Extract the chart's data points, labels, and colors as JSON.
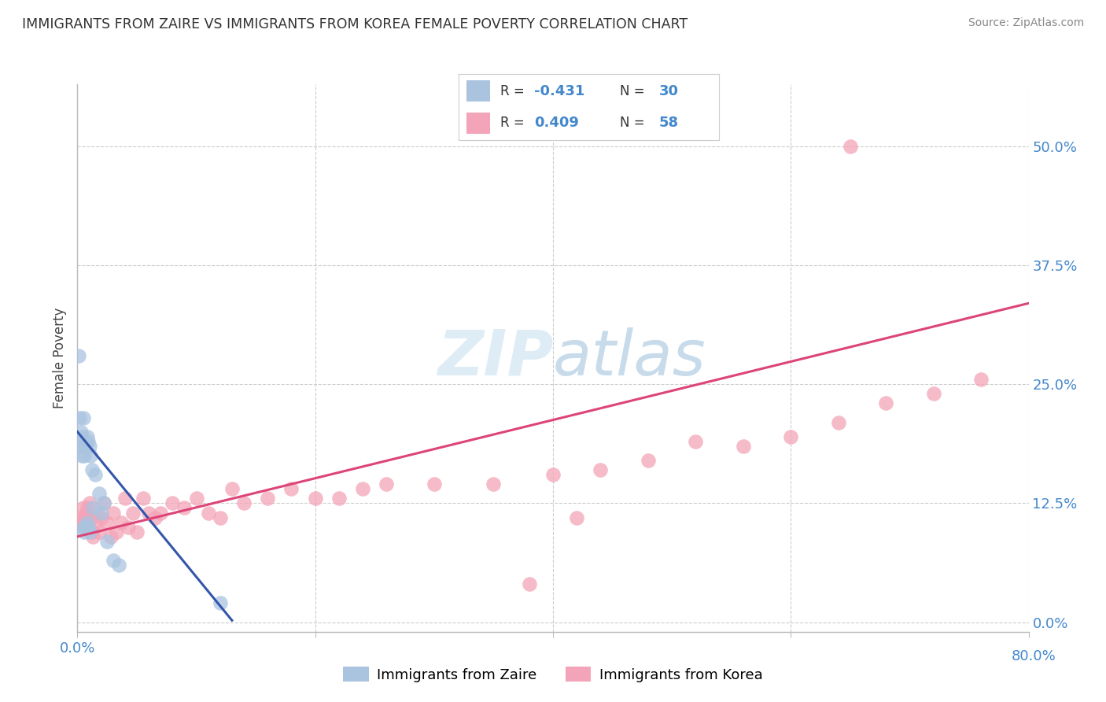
{
  "title": "IMMIGRANTS FROM ZAIRE VS IMMIGRANTS FROM KOREA FEMALE POVERTY CORRELATION CHART",
  "source": "Source: ZipAtlas.com",
  "ylabel": "Female Poverty",
  "y_tick_labels": [
    "0.0%",
    "12.5%",
    "25.0%",
    "37.5%",
    "50.0%"
  ],
  "y_tick_values": [
    0.0,
    0.125,
    0.25,
    0.375,
    0.5
  ],
  "x_range": [
    0.0,
    0.8
  ],
  "y_range": [
    -0.01,
    0.565
  ],
  "zaire_color": "#aac4e0",
  "korea_color": "#f4a4b8",
  "zaire_line_color": "#3355aa",
  "korea_line_color": "#dd4477",
  "background_color": "#ffffff",
  "grid_color": "#cccccc",
  "zaire_r": "-0.431",
  "zaire_n": "30",
  "korea_r": "0.409",
  "korea_n": "58",
  "zaire_scatter_x": [
    0.001,
    0.002,
    0.002,
    0.003,
    0.003,
    0.004,
    0.004,
    0.005,
    0.005,
    0.006,
    0.006,
    0.007,
    0.007,
    0.008,
    0.008,
    0.009,
    0.009,
    0.01,
    0.01,
    0.011,
    0.012,
    0.013,
    0.015,
    0.018,
    0.02,
    0.022,
    0.025,
    0.03,
    0.035,
    0.12
  ],
  "zaire_scatter_y": [
    0.28,
    0.215,
    0.185,
    0.2,
    0.185,
    0.195,
    0.175,
    0.215,
    0.1,
    0.175,
    0.095,
    0.185,
    0.1,
    0.195,
    0.105,
    0.19,
    0.1,
    0.185,
    0.095,
    0.175,
    0.16,
    0.12,
    0.155,
    0.135,
    0.115,
    0.125,
    0.085,
    0.065,
    0.06,
    0.02
  ],
  "korea_scatter_x": [
    0.002,
    0.003,
    0.004,
    0.005,
    0.006,
    0.007,
    0.008,
    0.009,
    0.01,
    0.011,
    0.012,
    0.013,
    0.015,
    0.016,
    0.018,
    0.02,
    0.022,
    0.025,
    0.028,
    0.03,
    0.033,
    0.037,
    0.04,
    0.043,
    0.047,
    0.05,
    0.055,
    0.06,
    0.065,
    0.07,
    0.08,
    0.09,
    0.1,
    0.11,
    0.12,
    0.13,
    0.14,
    0.16,
    0.18,
    0.2,
    0.22,
    0.24,
    0.26,
    0.3,
    0.35,
    0.4,
    0.44,
    0.48,
    0.52,
    0.56,
    0.6,
    0.64,
    0.68,
    0.72,
    0.76,
    0.42,
    0.38,
    0.65
  ],
  "korea_scatter_y": [
    0.105,
    0.11,
    0.105,
    0.12,
    0.11,
    0.115,
    0.12,
    0.105,
    0.125,
    0.11,
    0.095,
    0.09,
    0.105,
    0.115,
    0.095,
    0.11,
    0.125,
    0.105,
    0.09,
    0.115,
    0.095,
    0.105,
    0.13,
    0.1,
    0.115,
    0.095,
    0.13,
    0.115,
    0.11,
    0.115,
    0.125,
    0.12,
    0.13,
    0.115,
    0.11,
    0.14,
    0.125,
    0.13,
    0.14,
    0.13,
    0.13,
    0.14,
    0.145,
    0.145,
    0.145,
    0.155,
    0.16,
    0.17,
    0.19,
    0.185,
    0.195,
    0.21,
    0.23,
    0.24,
    0.255,
    0.11,
    0.04,
    0.5
  ],
  "zaire_line_x": [
    0.0,
    0.13
  ],
  "zaire_line_y": [
    0.2,
    0.002
  ],
  "korea_line_x": [
    0.0,
    0.8
  ],
  "korea_line_y": [
    0.09,
    0.335
  ]
}
